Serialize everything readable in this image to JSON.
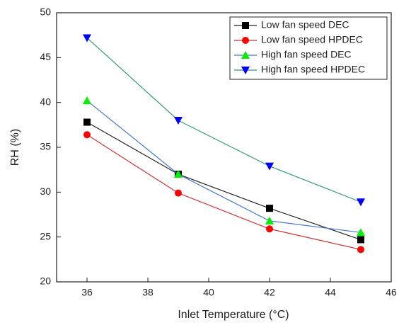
{
  "chart_data": {
    "type": "line",
    "x_label": "Inlet Temperature (°C)",
    "y_label": "RH (%)",
    "x": [
      36,
      39,
      42,
      45
    ],
    "xlim": [
      35,
      46
    ],
    "xticks": [
      36,
      38,
      40,
      42,
      44,
      46
    ],
    "ylim": [
      20,
      50
    ],
    "yticks": [
      20,
      25,
      30,
      35,
      40,
      45,
      50
    ],
    "legend": "top-right",
    "series": [
      {
        "name": "Low fan speed DEC",
        "color": "#000000",
        "line_color": "#222222",
        "marker": "square",
        "values": [
          37.8,
          32.0,
          28.2,
          24.7
        ]
      },
      {
        "name": "Low fan speed HPDEC",
        "color": "#ff0000",
        "line_color": "#cc3333",
        "marker": "circle",
        "values": [
          36.4,
          29.9,
          25.9,
          23.6
        ]
      },
      {
        "name": "High fan speed DEC",
        "color": "#00ee00",
        "line_color": "#4477cc",
        "marker": "triangle-up",
        "values": [
          40.2,
          32.0,
          26.8,
          25.5
        ]
      },
      {
        "name": "High fan speed HPDEC",
        "color": "#0000ff",
        "line_color": "#339977",
        "marker": "triangle-down",
        "values": [
          47.2,
          38.0,
          32.9,
          28.9
        ]
      }
    ]
  }
}
